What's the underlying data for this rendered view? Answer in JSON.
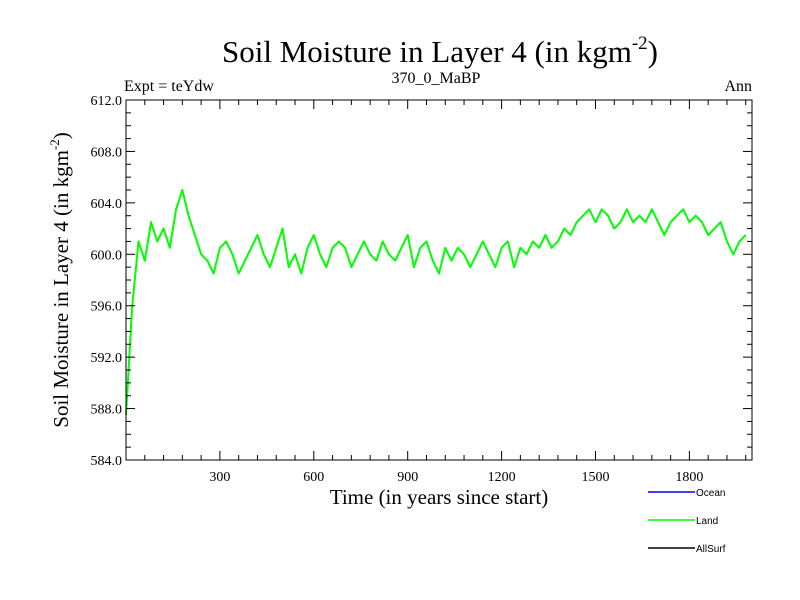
{
  "chart_data": {
    "type": "line",
    "title": "Soil Moisture in Layer 4 (in kgm",
    "title_superscript": "-2",
    "title_suffix": ")",
    "subtitle_left": "Expt = teYdw",
    "subtitle_center": "370_0_MaBP",
    "subtitle_right": "Ann",
    "xlabel": "Time (in years since start)",
    "ylabel": "Soil Moisture in Layer 4 (in kgm",
    "ylabel_superscript": "-2",
    "ylabel_suffix": ")",
    "xlim": [
      0,
      2000
    ],
    "ylim": [
      584.0,
      612.0
    ],
    "xticks": [
      300,
      600,
      900,
      1200,
      1500,
      1800
    ],
    "xtick_labels": [
      "300",
      "600",
      "900",
      "1200",
      "1500",
      "1800"
    ],
    "yticks": [
      584.0,
      588.0,
      592.0,
      596.0,
      600.0,
      604.0,
      608.0,
      612.0
    ],
    "ytick_labels": [
      "584.0",
      "588.0",
      "592.0",
      "596.0",
      "600.0",
      "604.0",
      "608.0",
      "612.0"
    ],
    "legend": {
      "position": "bottom-right",
      "entries": [
        {
          "name": "Ocean",
          "color": "#0000ff"
        },
        {
          "name": "Land",
          "color": "#00ff00"
        },
        {
          "name": "AllSurf",
          "color": "#000000"
        }
      ]
    },
    "series": [
      {
        "name": "Land",
        "color": "#00ff00",
        "interval": 20,
        "x_start": 0,
        "values": [
          587.5,
          596.0,
          601.0,
          599.5,
          602.5,
          601.0,
          602.0,
          600.5,
          603.5,
          605.0,
          603.0,
          601.5,
          600.0,
          599.5,
          598.5,
          600.5,
          601.0,
          600.0,
          598.5,
          599.5,
          600.5,
          601.5,
          600.0,
          599.0,
          600.5,
          602.0,
          599.0,
          600.0,
          598.5,
          600.5,
          601.5,
          600.0,
          599.0,
          600.5,
          601.0,
          600.5,
          599.0,
          600.0,
          601.0,
          600.0,
          599.5,
          601.0,
          600.0,
          599.5,
          600.5,
          601.5,
          599.0,
          600.5,
          601.0,
          599.5,
          598.5,
          600.5,
          599.5,
          600.5,
          600.0,
          599.0,
          600.0,
          601.0,
          600.0,
          599.0,
          600.5,
          601.0,
          599.0,
          600.5,
          600.0,
          601.0,
          600.5,
          601.5,
          600.5,
          601.0,
          602.0,
          601.5,
          602.5,
          603.0,
          603.5,
          602.5,
          603.5,
          603.0,
          602.0,
          602.5,
          603.5,
          602.5,
          603.0,
          602.5,
          603.5,
          602.5,
          601.5,
          602.5,
          603.0,
          603.5,
          602.5,
          603.0,
          602.5,
          601.5,
          602.0,
          602.5,
          601.0,
          600.0,
          601.0,
          601.5
        ]
      }
    ]
  }
}
